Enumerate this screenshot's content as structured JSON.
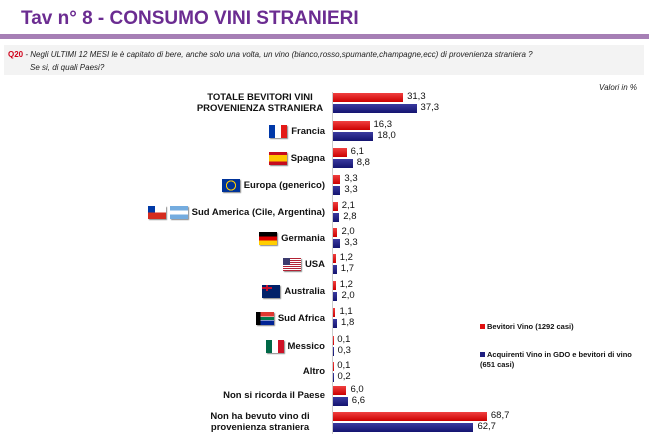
{
  "title": "Tav n° 8 - CONSUMO VINI STRANIERI",
  "question": {
    "code": "Q20",
    "line1": " - Negli ULTIMI 12 MESI le è capitato di bere, anche solo una volta, un vino (bianco,rosso,spumante,champagne,ecc) di provenienza straniera ?",
    "line2": "Se si, di quali Paesi?"
  },
  "units": "Valori in %",
  "colors": {
    "series1": "#e01010",
    "series2": "#1e1e80",
    "title": "#6b2c91"
  },
  "chart_data": {
    "type": "bar",
    "orientation": "horizontal",
    "categories": [
      "TOTALE BEVITORI VINI PROVENIENZA STRANIERA",
      "Francia",
      "Spagna",
      "Europa (generico)",
      "Sud America (Cile, Argentina)",
      "Germania",
      "USA",
      "Australia",
      "Sud Africa",
      "Messico",
      "Altro",
      "Non si ricorda il Paese",
      "Non ha bevuto vino di provenienza straniera"
    ],
    "category_flags": [
      [],
      [
        "france-flag-icon"
      ],
      [
        "spain-flag-icon"
      ],
      [
        "eu-flag-icon"
      ],
      [
        "chile-flag-icon",
        "argentina-flag-icon"
      ],
      [
        "germany-flag-icon"
      ],
      [
        "usa-flag-icon"
      ],
      [
        "australia-flag-icon"
      ],
      [
        "south-africa-flag-icon"
      ],
      [
        "mexico-flag-icon"
      ],
      [],
      [],
      []
    ],
    "series": [
      {
        "name": "Bevitori Vino (1292 casi)",
        "values": [
          31.3,
          16.3,
          6.1,
          3.3,
          2.1,
          2.0,
          1.2,
          1.2,
          1.1,
          0.1,
          0.1,
          6.0,
          68.7
        ],
        "labels": [
          "31,3",
          "16,3",
          "6,1",
          "3,3",
          "2,1",
          "2,0",
          "1,2",
          "1,2",
          "1,1",
          "0,1",
          "0,1",
          "6,0",
          "68,7"
        ]
      },
      {
        "name": "Acquirenti Vino in GDO e bevitori di vino (651 casi)",
        "values": [
          37.3,
          18.0,
          8.8,
          3.3,
          2.8,
          3.3,
          1.7,
          2.0,
          1.8,
          0.3,
          0.2,
          6.6,
          62.7
        ],
        "labels": [
          "37,3",
          "18,0",
          "8,8",
          "3,3",
          "2,8",
          "3,3",
          "1,7",
          "2,0",
          "1,8",
          "0,3",
          "0,2",
          "6,6",
          "62,7"
        ]
      }
    ],
    "legend_position": "right",
    "grid": false
  }
}
